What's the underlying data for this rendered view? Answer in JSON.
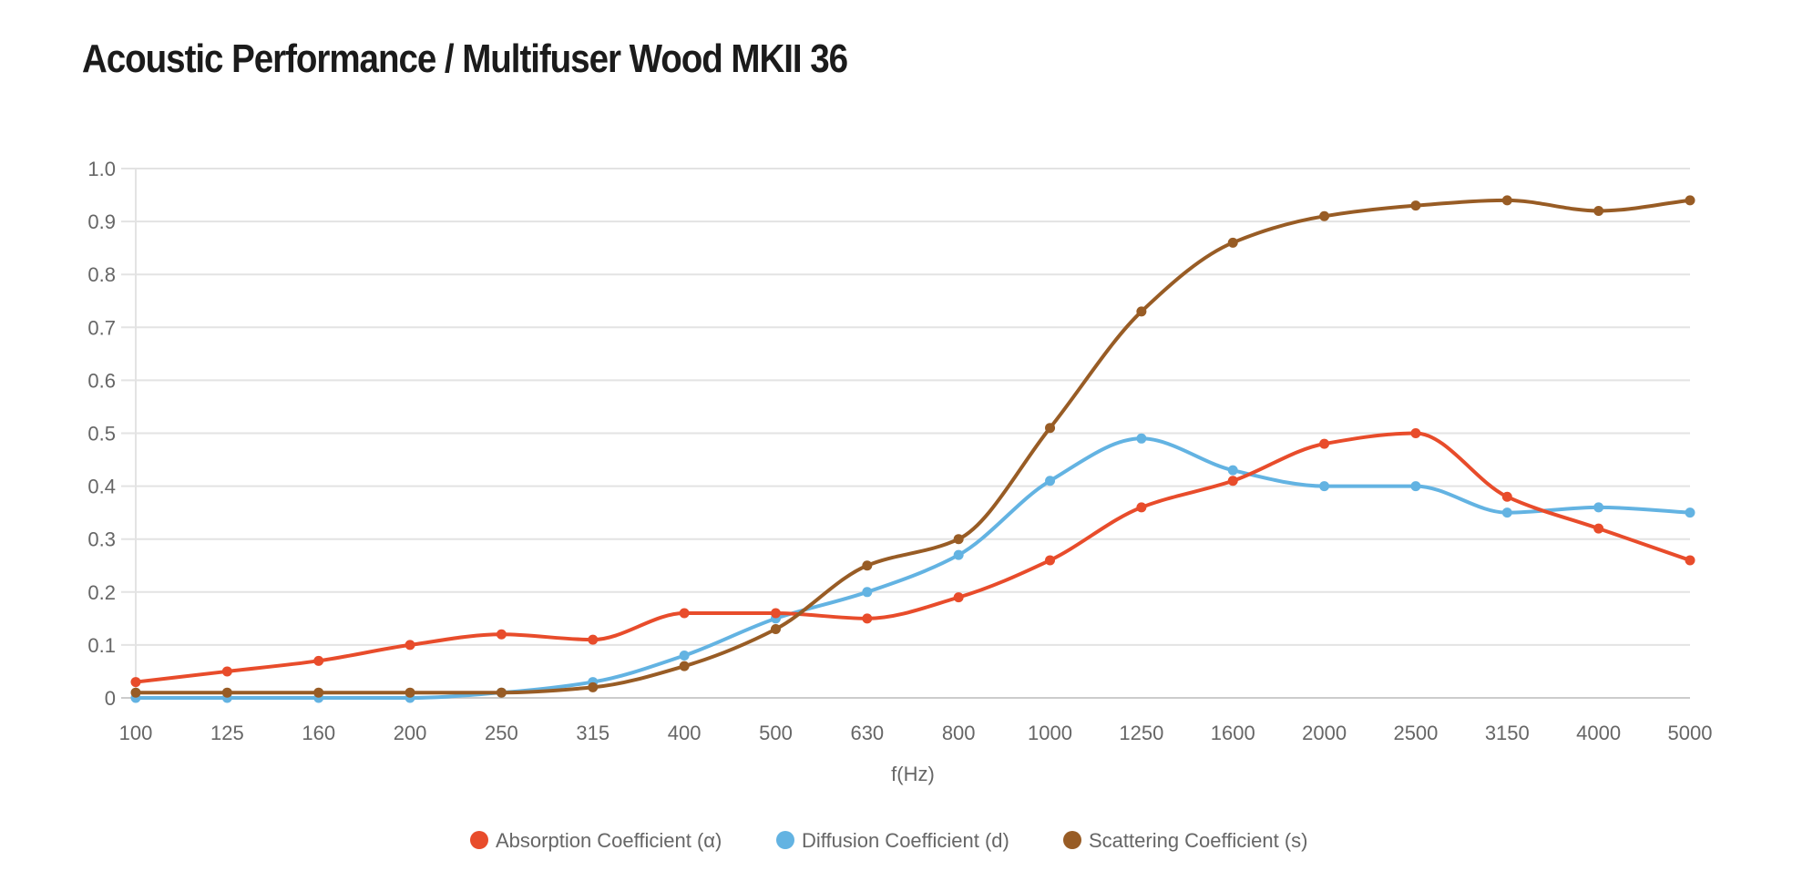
{
  "title": "Acoustic Performance / Multifuser Wood MKII 36",
  "chart_data": {
    "type": "line",
    "title": "Acoustic Performance / Multifuser Wood MKII 36",
    "xlabel": "f(Hz)",
    "ylabel": "",
    "categories": [
      "100",
      "125",
      "160",
      "200",
      "250",
      "315",
      "400",
      "500",
      "630",
      "800",
      "1000",
      "1250",
      "1600",
      "2000",
      "2500",
      "3150",
      "4000",
      "5000"
    ],
    "ylim": [
      0,
      1.0
    ],
    "yticks": [
      "0",
      "0.1",
      "0.2",
      "0.3",
      "0.4",
      "0.5",
      "0.6",
      "0.7",
      "0.8",
      "0.9",
      "1.0"
    ],
    "grid": true,
    "legend_position": "bottom",
    "series": [
      {
        "name": "Absorption Coefficient (α)",
        "color": "#E84C2B",
        "values": [
          0.03,
          0.05,
          0.07,
          0.1,
          0.12,
          0.11,
          0.16,
          0.16,
          0.15,
          0.19,
          0.26,
          0.36,
          0.41,
          0.48,
          0.5,
          0.38,
          0.32,
          0.26
        ]
      },
      {
        "name": "Diffusion Coefficient (d)",
        "color": "#63B3E2",
        "values": [
          0.0,
          0.0,
          0.0,
          0.0,
          0.01,
          0.03,
          0.08,
          0.15,
          0.2,
          0.27,
          0.41,
          0.49,
          0.43,
          0.4,
          0.4,
          0.35,
          0.36,
          0.35
        ]
      },
      {
        "name": "Scattering Coefficient (s)",
        "color": "#985C25",
        "values": [
          0.01,
          0.01,
          0.01,
          0.01,
          0.01,
          0.02,
          0.06,
          0.13,
          0.25,
          0.3,
          0.51,
          0.73,
          0.86,
          0.91,
          0.93,
          0.94,
          0.92,
          0.94
        ]
      }
    ]
  }
}
